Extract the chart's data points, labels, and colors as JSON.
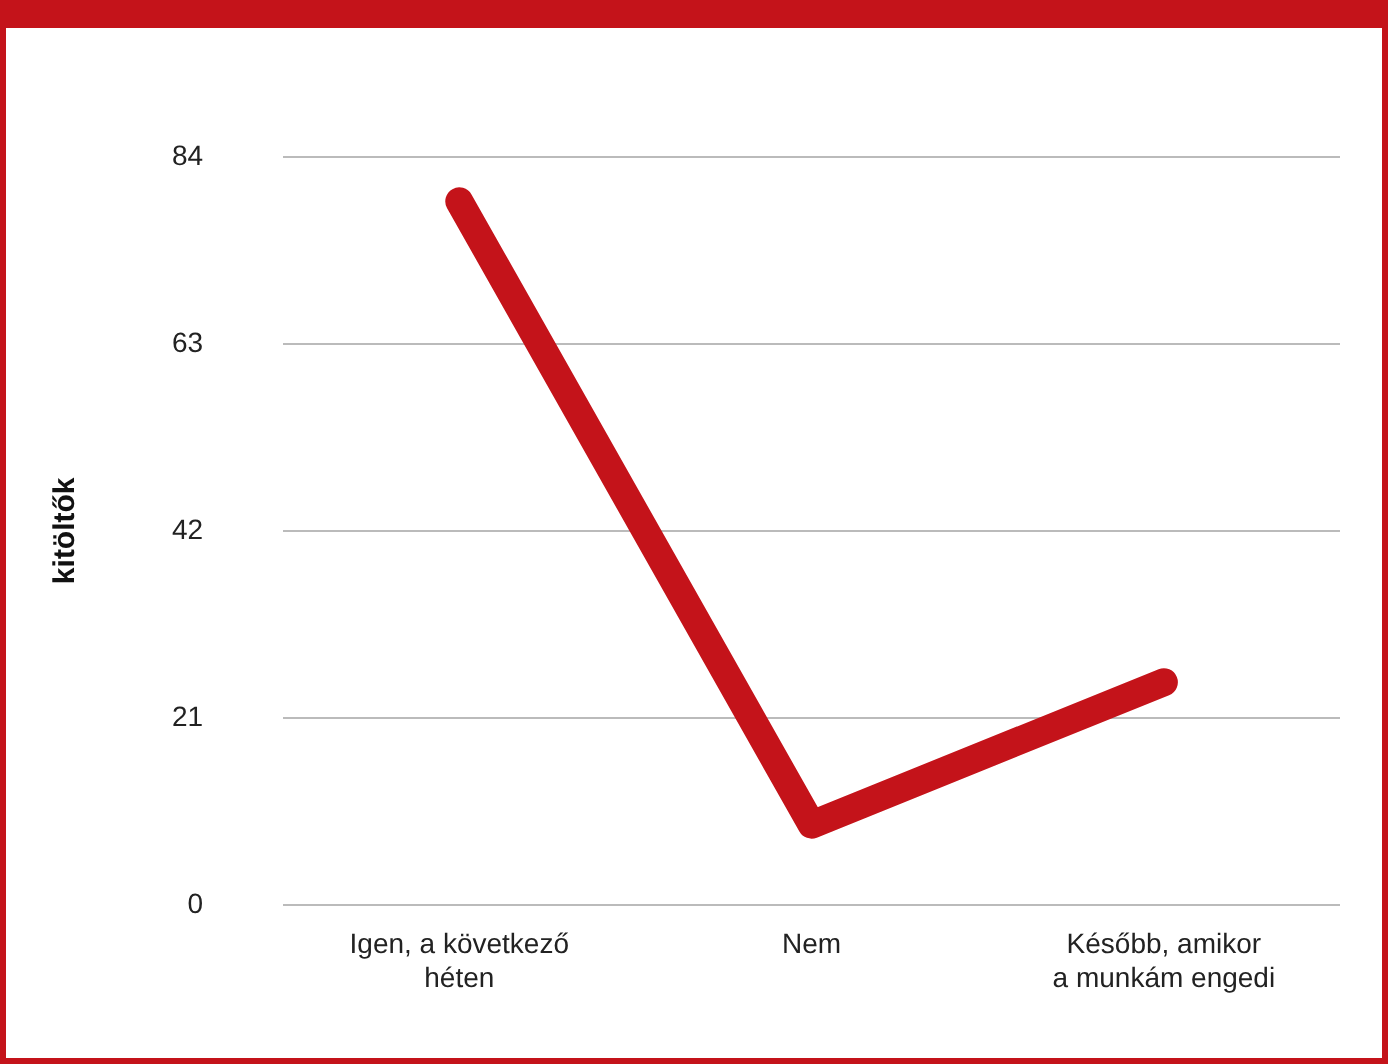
{
  "chart_data": {
    "type": "line",
    "ylabel": "kitöltők",
    "categories": [
      [
        "Igen, a következő",
        "héten"
      ],
      "Nem",
      [
        "Később, amikor",
        "a munkám engedi"
      ]
    ],
    "series": [
      {
        "color": "#c4131a",
        "values": [
          79,
          9,
          25
        ]
      }
    ],
    "ylim": [
      0,
      84
    ],
    "yticks": [
      0,
      21,
      42,
      63,
      84
    ],
    "grid": "y",
    "legend": false,
    "marker": "none",
    "line_style": "solid"
  }
}
